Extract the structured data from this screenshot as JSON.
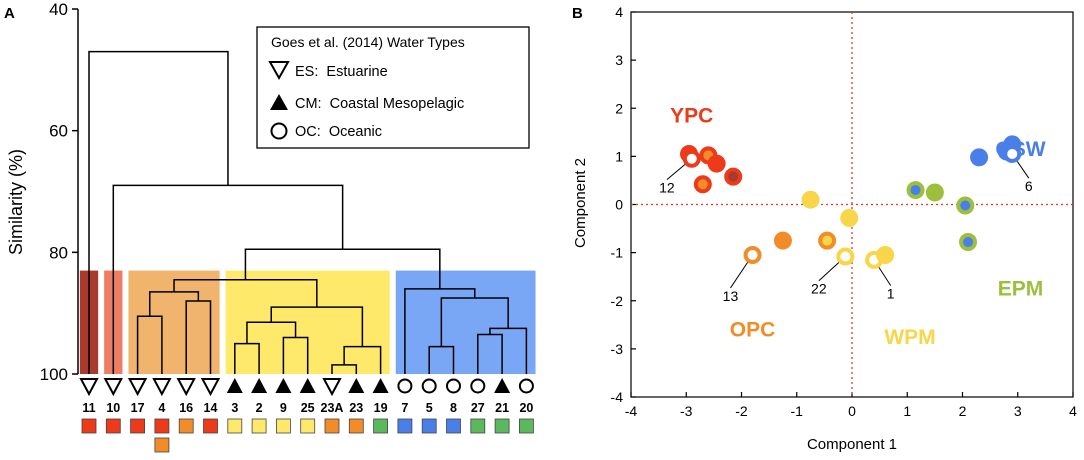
{
  "colors": {
    "dark_red": "#a83a2e",
    "red": "#ec3a1a",
    "salmon": "#ee7d63",
    "orange": "#f28c28",
    "light_orange": "#f0b46c",
    "yellow": "#ffe96a",
    "yellow_dot": "#f9d54a",
    "blue": "#4a7fea",
    "light_blue": "#7aa7f5",
    "green": "#5cb85c",
    "lime": "#9cbf3c",
    "axis_red": "#e23a1e"
  },
  "chart_data": [
    {
      "type": "dendrogram",
      "panel_label": "A",
      "ylabel": "Similarity (%)",
      "ylim": [
        40,
        100
      ],
      "yticks": [
        40,
        60,
        80,
        100
      ],
      "legend": {
        "title": "Goes et al. (2014) Water Types",
        "position": "top-right",
        "items": [
          {
            "symbol": "triangle-down-open",
            "label": "ES:  Estuarine"
          },
          {
            "symbol": "triangle-up-filled",
            "label": "CM:  Coastal Mesopelagic"
          },
          {
            "symbol": "circle-open",
            "label": "OC:  Oceanic"
          }
        ]
      },
      "leaves": [
        {
          "id": "11",
          "type": "ES",
          "box": "red"
        },
        {
          "id": "10",
          "type": "ES",
          "box": "red"
        },
        {
          "id": "17",
          "type": "ES",
          "box": "red"
        },
        {
          "id": "4",
          "type": "ES",
          "box": "red",
          "box2": "orange"
        },
        {
          "id": "16",
          "type": "ES",
          "box": "orange"
        },
        {
          "id": "14",
          "type": "ES",
          "box": "red"
        },
        {
          "id": "3",
          "type": "CM",
          "box": "yellow"
        },
        {
          "id": "2",
          "type": "CM",
          "box": "yellow"
        },
        {
          "id": "9",
          "type": "CM",
          "box": "yellow"
        },
        {
          "id": "25",
          "type": "CM",
          "box": "yellow"
        },
        {
          "id": "23A",
          "type": "ES",
          "box": "orange"
        },
        {
          "id": "23",
          "type": "CM",
          "box": "orange"
        },
        {
          "id": "19",
          "type": "CM",
          "box": "green"
        },
        {
          "id": "7",
          "type": "OC",
          "box": "blue"
        },
        {
          "id": "5",
          "type": "OC",
          "box": "blue"
        },
        {
          "id": "8",
          "type": "OC",
          "box": "blue"
        },
        {
          "id": "27",
          "type": "OC",
          "box": "green"
        },
        {
          "id": "21",
          "type": "CM",
          "box": "green"
        },
        {
          "id": "20",
          "type": "OC",
          "box": "green"
        }
      ],
      "clusters": [
        {
          "from": 0,
          "to": 0,
          "color": "dark_red",
          "top": 83
        },
        {
          "from": 1,
          "to": 1,
          "color": "salmon",
          "top": 83
        },
        {
          "from": 2,
          "to": 5,
          "color": "light_orange",
          "top": 83
        },
        {
          "from": 6,
          "to": 12,
          "color": "yellow",
          "top": 83
        },
        {
          "from": 13,
          "to": 18,
          "color": "light_blue",
          "top": 83
        }
      ],
      "merges": [
        {
          "a": "L2",
          "b": "L3",
          "h": 90.5
        },
        {
          "a": "L4",
          "b": "L5",
          "h": 88
        },
        {
          "a": "M0",
          "b": "M1",
          "h": 86.5
        },
        {
          "a": "L6",
          "b": "L7",
          "h": 95
        },
        {
          "a": "L8",
          "b": "L9",
          "h": 94
        },
        {
          "a": "M3",
          "b": "M4",
          "h": 91.5
        },
        {
          "a": "L10",
          "b": "L11",
          "h": 98.5
        },
        {
          "a": "M6",
          "b": "L12",
          "h": 95.5
        },
        {
          "a": "M5",
          "b": "M7",
          "h": 89
        },
        {
          "a": "M2",
          "b": "M8",
          "h": 84.5
        },
        {
          "a": "L14",
          "b": "L15",
          "h": 95.5
        },
        {
          "a": "L16",
          "b": "L17",
          "h": 93.5
        },
        {
          "a": "M11",
          "b": "L18",
          "h": 92.5
        },
        {
          "a": "M10",
          "b": "M12",
          "h": 87.5
        },
        {
          "a": "L13",
          "b": "M13",
          "h": 86
        },
        {
          "a": "M9",
          "b": "M14",
          "h": 79.5
        },
        {
          "a": "M15",
          "b": "L1",
          "h": 69
        },
        {
          "a": "M16",
          "b": "L0",
          "h": 47
        }
      ]
    },
    {
      "type": "scatter",
      "panel_label": "B",
      "xlabel": "Component 1",
      "ylabel": "Component 2",
      "xlim": [
        -4,
        4
      ],
      "ylim": [
        -4,
        4
      ],
      "xticks": [
        -4,
        -3,
        -2,
        -1,
        0,
        1,
        2,
        3,
        4
      ],
      "yticks": [
        -4,
        -3,
        -2,
        -1,
        0,
        1,
        2,
        3,
        4
      ],
      "zero_lines": true,
      "group_labels": [
        {
          "text": "YPC",
          "x": -2.9,
          "y": 1.85,
          "color": "red"
        },
        {
          "text": "OSW",
          "x": 3.05,
          "y": 1.15,
          "color": "blue"
        },
        {
          "text": "EPM",
          "x": 3.05,
          "y": -1.75,
          "color": "lime"
        },
        {
          "text": "OPC",
          "x": -1.8,
          "y": -2.6,
          "color": "orange"
        },
        {
          "text": "WPM",
          "x": 1.05,
          "y": -2.75,
          "color": "yellow_dot"
        }
      ],
      "points": [
        {
          "x": -2.95,
          "y": 1.05,
          "fill": "red",
          "ring": "red"
        },
        {
          "x": -2.9,
          "y": 0.95,
          "fill": "#ffffff",
          "ring": "red"
        },
        {
          "x": -2.6,
          "y": 1.02,
          "fill": "orange",
          "ring": "red"
        },
        {
          "x": -2.7,
          "y": 0.42,
          "fill": "orange",
          "ring": "red"
        },
        {
          "x": -2.45,
          "y": 0.85,
          "fill": "red",
          "ring": "red"
        },
        {
          "x": -2.15,
          "y": 0.58,
          "fill": "dark_red",
          "ring": "red"
        },
        {
          "x": -0.75,
          "y": 0.1,
          "fill": "yellow_dot",
          "ring": "yellow_dot"
        },
        {
          "x": -0.05,
          "y": -0.28,
          "fill": "yellow_dot",
          "ring": "yellow_dot"
        },
        {
          "x": -1.25,
          "y": -0.75,
          "fill": "orange",
          "ring": "orange"
        },
        {
          "x": -0.45,
          "y": -0.75,
          "fill": "yellow_dot",
          "ring": "orange"
        },
        {
          "x": -1.8,
          "y": -1.05,
          "fill": "#ffffff",
          "ring": "orange"
        },
        {
          "x": -0.12,
          "y": -1.08,
          "fill": "#ffffff",
          "ring": "yellow_dot"
        },
        {
          "x": 0.4,
          "y": -1.15,
          "fill": "#ffffff",
          "ring": "yellow_dot"
        },
        {
          "x": 0.6,
          "y": -1.05,
          "fill": "yellow_dot",
          "ring": "yellow_dot"
        },
        {
          "x": 1.15,
          "y": 0.3,
          "fill": "blue",
          "ring": "lime"
        },
        {
          "x": 1.5,
          "y": 0.25,
          "fill": "lime",
          "ring": "lime"
        },
        {
          "x": 2.05,
          "y": -0.02,
          "fill": "blue",
          "ring": "lime"
        },
        {
          "x": 2.1,
          "y": -0.78,
          "fill": "blue",
          "ring": "lime"
        },
        {
          "x": 2.3,
          "y": 0.98,
          "fill": "blue",
          "ring": "blue"
        },
        {
          "x": 2.8,
          "y": 1.1,
          "fill": "blue",
          "ring": "blue"
        },
        {
          "x": 2.9,
          "y": 1.25,
          "fill": "blue",
          "ring": "blue"
        },
        {
          "x": 2.9,
          "y": 1.05,
          "fill": "#ffffff",
          "ring": "blue"
        }
      ],
      "annotations": [
        {
          "text": "12",
          "x": -2.9,
          "y": 0.95,
          "tx": -3.35,
          "ty": 0.35
        },
        {
          "text": "6",
          "x": 2.9,
          "y": 1.05,
          "tx": 3.2,
          "ty": 0.38
        },
        {
          "text": "13",
          "x": -1.8,
          "y": -1.05,
          "tx": -2.2,
          "ty": -1.9
        },
        {
          "text": "22",
          "x": -0.12,
          "y": -1.08,
          "tx": -0.6,
          "ty": -1.75
        },
        {
          "text": "1",
          "x": 0.4,
          "y": -1.15,
          "tx": 0.7,
          "ty": -1.85
        }
      ]
    }
  ]
}
